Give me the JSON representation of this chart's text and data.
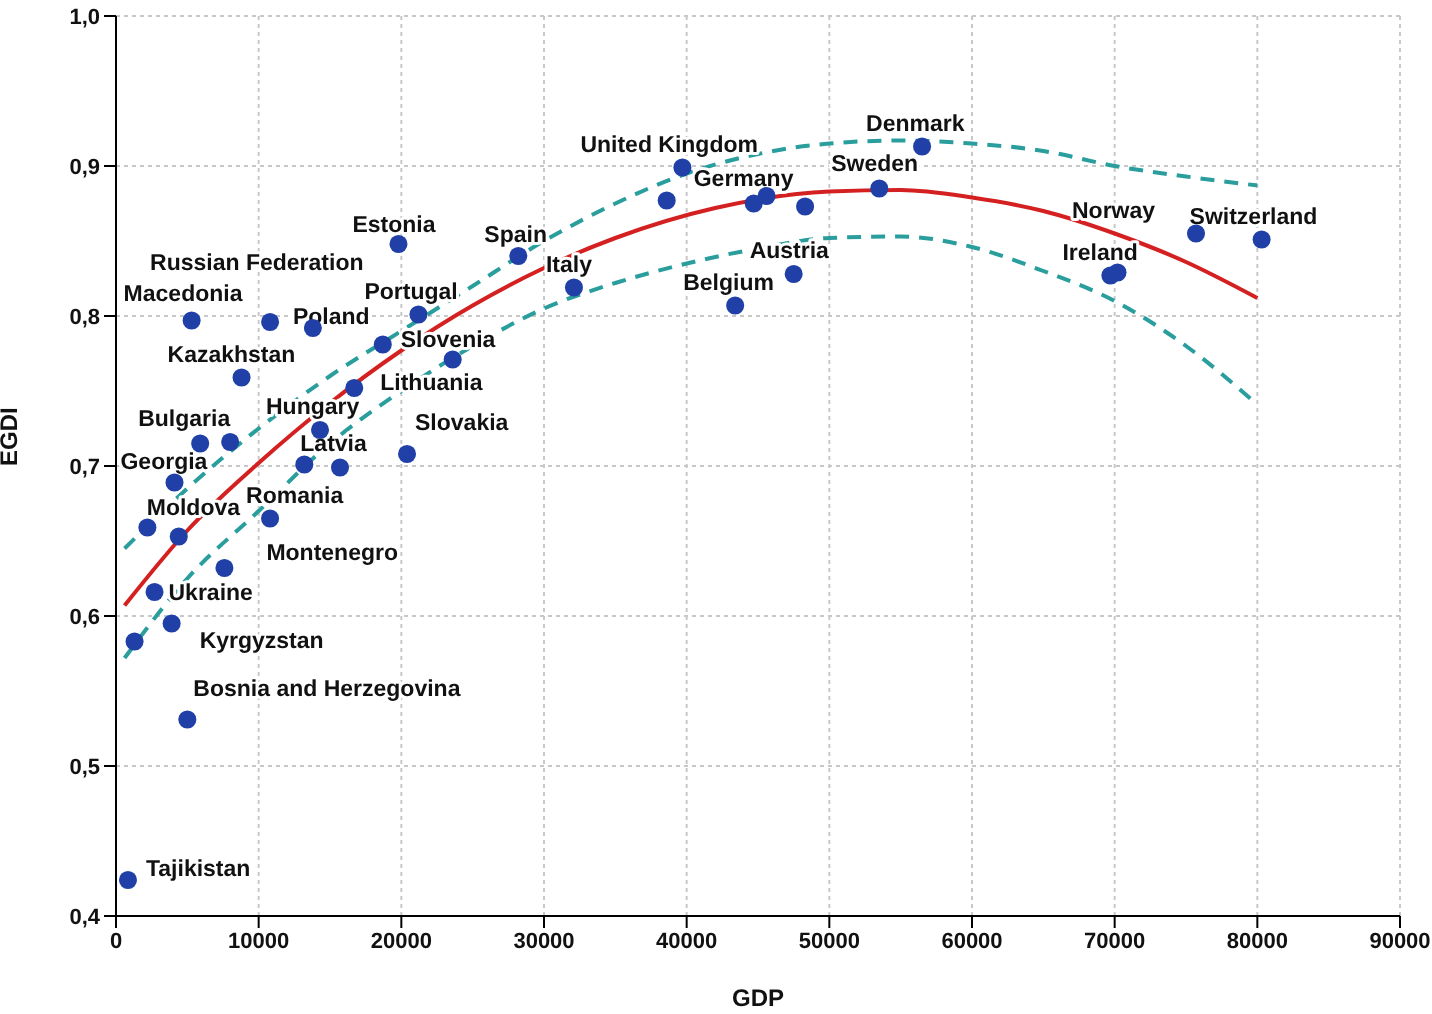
{
  "chart_data": {
    "type": "scatter",
    "xlabel": "GDP",
    "ylabel": "EGDI",
    "xlim": [
      0,
      90000
    ],
    "xticks": [
      0,
      10000,
      20000,
      30000,
      40000,
      50000,
      60000,
      70000,
      80000,
      90000
    ],
    "ylim": [
      0.4,
      1.0
    ],
    "yticks": [
      {
        "value": 0.4,
        "label": "0,4"
      },
      {
        "value": 0.5,
        "label": "0,5"
      },
      {
        "value": 0.6,
        "label": "0,6"
      },
      {
        "value": 0.7,
        "label": "0,7"
      },
      {
        "value": 0.8,
        "label": "0,8"
      },
      {
        "value": 0.9,
        "label": "0,9"
      },
      {
        "value": 1.0,
        "label": "1,0"
      }
    ],
    "grid": true,
    "series": [
      {
        "color": "#2040a8",
        "marker": "circle",
        "x": [
          840,
          5000,
          3900,
          1300,
          2700,
          7600,
          4400,
          2200,
          10800,
          4100,
          5900,
          8000,
          13200,
          15700,
          20400,
          14300,
          16700,
          8800,
          18700,
          23600,
          5300,
          10800,
          13800,
          21200,
          19800,
          28200,
          32100,
          43400,
          47500,
          39700,
          38600,
          44700,
          45600,
          48300,
          53500,
          56500,
          69700,
          70200,
          75700,
          80300
        ],
        "values": [
          0.424,
          0.531,
          0.595,
          0.583,
          0.616,
          0.632,
          0.653,
          0.659,
          0.665,
          0.689,
          0.715,
          0.716,
          0.701,
          0.699,
          0.708,
          0.724,
          0.752,
          0.759,
          0.781,
          0.771,
          0.797,
          0.796,
          0.792,
          0.801,
          0.848,
          0.84,
          0.819,
          0.807,
          0.828,
          0.899,
          0.877,
          0.875,
          0.88,
          0.873,
          0.885,
          0.913,
          0.827,
          0.829,
          0.855,
          0.851
        ]
      },
      {
        "type": "line",
        "color": "#d42020",
        "marker": "none",
        "line_style": "solid",
        "x": [
          600,
          5000,
          10000,
          15000,
          20000,
          25000,
          30000,
          35000,
          42000,
          50000,
          55000,
          60000,
          65000,
          70000,
          75000,
          80000
        ],
        "values": [
          0.607,
          0.657,
          0.702,
          0.742,
          0.777,
          0.807,
          0.832,
          0.852,
          0.872,
          0.883,
          0.884,
          0.879,
          0.87,
          0.855,
          0.836,
          0.812
        ]
      },
      {
        "type": "line",
        "color": "#2a9d9d",
        "marker": "none",
        "line_style": "dashed",
        "x": [
          600,
          5000,
          10000,
          15000,
          20000,
          25000,
          30000,
          35000,
          40000,
          45000,
          50000,
          55000,
          60000,
          65000,
          70000,
          75000,
          80000
        ],
        "values": [
          0.645,
          0.685,
          0.725,
          0.76,
          0.79,
          0.82,
          0.85,
          0.875,
          0.895,
          0.908,
          0.915,
          0.917,
          0.915,
          0.91,
          0.9,
          0.893,
          0.887
        ]
      },
      {
        "type": "line",
        "color": "#2a9d9d",
        "marker": "none",
        "line_style": "dashed",
        "x": [
          600,
          5000,
          10000,
          15000,
          20000,
          25000,
          30000,
          35000,
          40000,
          45000,
          50000,
          55000,
          60000,
          65000,
          70000,
          75000,
          80000
        ],
        "values": [
          0.572,
          0.625,
          0.67,
          0.715,
          0.75,
          0.78,
          0.805,
          0.822,
          0.835,
          0.845,
          0.852,
          0.853,
          0.846,
          0.83,
          0.81,
          0.78,
          0.741
        ]
      }
    ],
    "annotations": [
      {
        "text": "Tajikistan",
        "x": 840,
        "y": 0.424
      },
      {
        "text": "Bosnia and Herzegovina",
        "x": 5000,
        "y": 0.531
      },
      {
        "text": "Kyrgyzstan",
        "x": 3900,
        "y": 0.595
      },
      {
        "text": "Ukraine",
        "x": 2700,
        "y": 0.616
      },
      {
        "text": "Montenegro",
        "x": 7600,
        "y": 0.632
      },
      {
        "text": "Moldova",
        "x": 4400,
        "y": 0.653
      },
      {
        "text": "Romania",
        "x": 10800,
        "y": 0.665
      },
      {
        "text": "Georgia",
        "x": 4100,
        "y": 0.689
      },
      {
        "text": "Bulgaria",
        "x": 5900,
        "y": 0.715
      },
      {
        "text": "Latvia",
        "x": 13200,
        "y": 0.701
      },
      {
        "text": "Hungary",
        "x": 14300,
        "y": 0.724
      },
      {
        "text": "Slovakia",
        "x": 20400,
        "y": 0.708
      },
      {
        "text": "Lithuania",
        "x": 16700,
        "y": 0.752
      },
      {
        "text": "Slovenia",
        "x": 18700,
        "y": 0.781
      },
      {
        "text": "Kazakhstan",
        "x": 8800,
        "y": 0.759
      },
      {
        "text": "Macedonia",
        "x": 5300,
        "y": 0.797
      },
      {
        "text": "Russian Federation",
        "x": 10800,
        "y": 0.796
      },
      {
        "text": "Poland",
        "x": 13800,
        "y": 0.792
      },
      {
        "text": "Portugal",
        "x": 21200,
        "y": 0.801
      },
      {
        "text": "Estonia",
        "x": 19800,
        "y": 0.848
      },
      {
        "text": "Spain",
        "x": 28200,
        "y": 0.84
      },
      {
        "text": "Italy",
        "x": 32100,
        "y": 0.819
      },
      {
        "text": "Belgium",
        "x": 43400,
        "y": 0.807
      },
      {
        "text": "Austria",
        "x": 47500,
        "y": 0.828
      },
      {
        "text": "United Kingdom",
        "x": 39700,
        "y": 0.899
      },
      {
        "text": "Germany",
        "x": 44700,
        "y": 0.875
      },
      {
        "text": "Sweden",
        "x": 53500,
        "y": 0.885
      },
      {
        "text": "Denmark",
        "x": 56500,
        "y": 0.913
      },
      {
        "text": "Ireland",
        "x": 69700,
        "y": 0.827
      },
      {
        "text": "Norway",
        "x": 75700,
        "y": 0.855
      },
      {
        "text": "Switzerland",
        "x": 80300,
        "y": 0.851
      }
    ]
  }
}
